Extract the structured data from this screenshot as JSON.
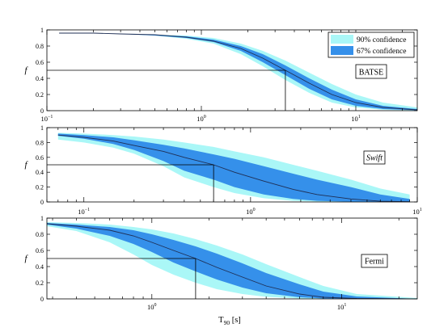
{
  "chart_data": [
    {
      "type": "area",
      "panel_label": "BATSE",
      "panel_label_italic": false,
      "xscale": "log",
      "xlim": [
        0.1,
        25
      ],
      "ylim": [
        0,
        1
      ],
      "ylabel": "f",
      "xtick_labels": [
        {
          "value": 0.1,
          "base": "10",
          "exp": "−1"
        },
        {
          "value": 1,
          "base": "10",
          "exp": "0"
        },
        {
          "value": 10,
          "base": "10",
          "exp": "1"
        }
      ],
      "ytick_labels": [
        "0",
        "0.2",
        "0.4",
        "0.6",
        "0.8",
        "1"
      ],
      "ytick_values": [
        0,
        0.2,
        0.4,
        0.6,
        0.8,
        1
      ],
      "median": {
        "x": 3.5,
        "y": 0.5
      },
      "x": [
        0.12,
        0.2,
        0.3,
        0.5,
        0.8,
        1.2,
        1.8,
        2.5,
        3.5,
        5,
        7,
        10,
        15,
        25
      ],
      "series": [
        {
          "role": "median",
          "values": [
            0.96,
            0.96,
            0.95,
            0.94,
            0.91,
            0.86,
            0.77,
            0.65,
            0.5,
            0.34,
            0.2,
            0.1,
            0.04,
            0.01
          ]
        },
        {
          "role": "band67",
          "lower": [
            0.96,
            0.96,
            0.95,
            0.93,
            0.9,
            0.85,
            0.74,
            0.6,
            0.44,
            0.27,
            0.14,
            0.06,
            0.02,
            0.005
          ],
          "upper": [
            0.96,
            0.96,
            0.95,
            0.94,
            0.92,
            0.88,
            0.8,
            0.7,
            0.56,
            0.4,
            0.26,
            0.14,
            0.06,
            0.02
          ]
        },
        {
          "role": "band90",
          "lower": [
            0.96,
            0.96,
            0.95,
            0.93,
            0.89,
            0.83,
            0.7,
            0.55,
            0.38,
            0.22,
            0.1,
            0.04,
            0.01,
            0.003
          ],
          "upper": [
            0.96,
            0.96,
            0.95,
            0.94,
            0.93,
            0.9,
            0.83,
            0.74,
            0.62,
            0.47,
            0.33,
            0.2,
            0.1,
            0.04
          ]
        }
      ]
    },
    {
      "type": "area",
      "panel_label": "Swift",
      "panel_label_italic": true,
      "xscale": "log",
      "xlim": [
        0.06,
        10
      ],
      "ylim": [
        0,
        1
      ],
      "ylabel": "f",
      "xtick_labels": [
        {
          "value": 0.1,
          "base": "10",
          "exp": "−1"
        },
        {
          "value": 1,
          "base": "10",
          "exp": "0"
        },
        {
          "value": 10,
          "base": "10",
          "exp": "1"
        }
      ],
      "ytick_labels": [
        "0",
        "0.2",
        "0.4",
        "0.6",
        "0.8",
        "1"
      ],
      "ytick_values": [
        0,
        0.2,
        0.4,
        0.6,
        0.8,
        1
      ],
      "median": {
        "x": 0.6,
        "y": 0.5
      },
      "x": [
        0.07,
        0.1,
        0.15,
        0.2,
        0.3,
        0.4,
        0.6,
        0.8,
        1.2,
        1.8,
        2.5,
        4,
        6,
        9
      ],
      "series": [
        {
          "role": "median",
          "values": [
            0.9,
            0.87,
            0.82,
            0.76,
            0.68,
            0.6,
            0.5,
            0.4,
            0.28,
            0.17,
            0.1,
            0.04,
            0.01,
            0.003
          ]
        },
        {
          "role": "band67",
          "lower": [
            0.89,
            0.85,
            0.78,
            0.7,
            0.55,
            0.42,
            0.3,
            0.2,
            0.1,
            0.04,
            0.015,
            0.003,
            0.0,
            0.0
          ],
          "upper": [
            0.92,
            0.9,
            0.87,
            0.83,
            0.77,
            0.72,
            0.64,
            0.58,
            0.48,
            0.38,
            0.3,
            0.2,
            0.1,
            0.04
          ]
        },
        {
          "role": "band90",
          "lower": [
            0.84,
            0.8,
            0.73,
            0.65,
            0.48,
            0.33,
            0.2,
            0.12,
            0.05,
            0.015,
            0.005,
            0.0,
            0.0,
            0.0
          ],
          "upper": [
            0.93,
            0.92,
            0.9,
            0.88,
            0.84,
            0.8,
            0.74,
            0.68,
            0.6,
            0.5,
            0.42,
            0.3,
            0.18,
            0.1
          ]
        }
      ]
    },
    {
      "type": "area",
      "panel_label": "Fermi",
      "panel_label_italic": false,
      "xscale": "log",
      "xlim": [
        0.28,
        25
      ],
      "ylim": [
        0,
        1
      ],
      "ylabel": "f",
      "xlabel": "T",
      "xlabel_sub": "90",
      "xlabel_unit": " [s]",
      "xtick_labels": [
        {
          "value": 1,
          "base": "10",
          "exp": "0"
        },
        {
          "value": 10,
          "base": "10",
          "exp": "1"
        }
      ],
      "ytick_labels": [
        "0",
        "0.2",
        "0.4",
        "0.6",
        "0.8",
        "1"
      ],
      "ytick_values": [
        0,
        0.2,
        0.4,
        0.6,
        0.8,
        1
      ],
      "median": {
        "x": 1.7,
        "y": 0.5
      },
      "x": [
        0.28,
        0.4,
        0.6,
        0.8,
        1.0,
        1.3,
        1.7,
        2.2,
        3,
        4,
        6,
        8,
        12,
        25
      ],
      "series": [
        {
          "role": "median",
          "values": [
            0.93,
            0.9,
            0.85,
            0.78,
            0.7,
            0.6,
            0.5,
            0.39,
            0.27,
            0.16,
            0.06,
            0.02,
            0.005,
            0.0
          ]
        },
        {
          "role": "band67",
          "lower": [
            0.92,
            0.87,
            0.78,
            0.68,
            0.58,
            0.45,
            0.34,
            0.24,
            0.14,
            0.07,
            0.02,
            0.005,
            0.0,
            0.0
          ],
          "upper": [
            0.94,
            0.92,
            0.89,
            0.85,
            0.8,
            0.73,
            0.65,
            0.56,
            0.44,
            0.32,
            0.18,
            0.09,
            0.03,
            0.0
          ]
        },
        {
          "role": "band90",
          "lower": [
            0.9,
            0.84,
            0.7,
            0.55,
            0.42,
            0.3,
            0.2,
            0.12,
            0.06,
            0.025,
            0.005,
            0.0,
            0.0,
            0.0
          ],
          "upper": [
            0.95,
            0.94,
            0.92,
            0.89,
            0.86,
            0.81,
            0.74,
            0.66,
            0.55,
            0.43,
            0.27,
            0.16,
            0.06,
            0.01
          ]
        }
      ]
    }
  ],
  "legend": {
    "items": [
      {
        "label": "90% confidence",
        "color": "#aaf7f7"
      },
      {
        "label": "67% confidence",
        "color": "#3590ea"
      }
    ],
    "placement": "top-right"
  },
  "colors": {
    "band90": "#aaf7f7",
    "band67": "#3590ea",
    "median_line": "#1f2f55",
    "axes": "#000000"
  }
}
